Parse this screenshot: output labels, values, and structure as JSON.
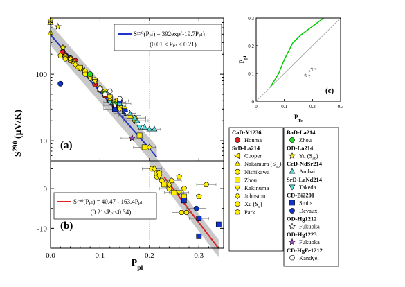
{
  "chart_data": [
    {
      "panel": "(a)",
      "type": "scatter",
      "scale": "log",
      "xlim": [
        0,
        0.35
      ],
      "ylim": [
        5,
        700
      ],
      "xticks": [
        "0.0",
        "0.1",
        "0.2",
        "0.3"
      ],
      "yticks": [
        {
          "v": 10,
          "label": "10"
        },
        {
          "v": 100,
          "label": "100"
        }
      ],
      "ylabel": "S",
      "ylabel_sup": "290",
      "ylabel_rest": " (μV/K)",
      "grid_x": [
        0.1,
        0.2
      ],
      "fit": {
        "label": "S²⁹⁰(Pₚₗ) = 392exp(-19.7Pₚₗ)",
        "range": "(0.01 < Pₚₗ < 0.21)",
        "a": 392,
        "b": -19.7,
        "color": "#2233cc",
        "x_range": [
          0.0,
          0.215
        ]
      },
      "points": [
        {
          "s": "CaD-Y1236 Honma",
          "x": 0.024,
          "y": 215
        },
        {
          "s": "CaD-Y1236 Honma",
          "x": 0.03,
          "y": 190
        },
        {
          "s": "CaD-Y1236 Honma",
          "x": 0.04,
          "y": 175
        },
        {
          "s": "CaD-Y1236 Honma",
          "x": 0.05,
          "y": 160
        },
        {
          "s": "CaD-Y1236 Honma",
          "x": 0.06,
          "y": 125
        },
        {
          "s": "CaD-Y1236 Honma",
          "x": 0.07,
          "y": 105
        },
        {
          "s": "CaD-Y1236 Honma",
          "x": 0.08,
          "y": 92
        },
        {
          "s": "CaD-Y1236 Honma",
          "x": 0.09,
          "y": 70
        },
        {
          "s": "CaD-Y1236 Honma",
          "x": 0.1,
          "y": 58
        },
        {
          "s": "CaD-Y1236 Honma",
          "x": 0.11,
          "y": 48
        },
        {
          "s": "CaD-Y1236 Honma",
          "x": 0.12,
          "y": 40
        },
        {
          "s": "CaD-Y1236 Honma",
          "x": 0.13,
          "y": 33
        },
        {
          "s": "SrD-La214 Cooper",
          "x": 0.045,
          "y": 150
        },
        {
          "s": "SrD-La214 Cooper",
          "x": 0.065,
          "y": 115
        },
        {
          "s": "SrD-La214 Cooper",
          "x": 0.09,
          "y": 80
        },
        {
          "s": "SrD-La214 Cooper",
          "x": 0.12,
          "y": 42
        },
        {
          "s": "SrD-La214 Nakamura",
          "x": 0.0,
          "y": 600
        },
        {
          "s": "SrD-La214 Nakamura",
          "x": 0.0,
          "y": 420
        },
        {
          "s": "SrD-La214 Nakamura",
          "x": 0.055,
          "y": 130
        },
        {
          "s": "SrD-La214 Nishikawa",
          "x": 0.03,
          "y": 185
        },
        {
          "s": "SrD-La214 Nishikawa",
          "x": 0.05,
          "y": 145
        },
        {
          "s": "SrD-La214 Nishikawa",
          "x": 0.07,
          "y": 110
        },
        {
          "s": "SrD-La214 Nishikawa",
          "x": 0.09,
          "y": 82
        },
        {
          "s": "SrD-La214 Nishikawa",
          "x": 0.11,
          "y": 55
        },
        {
          "s": "SrD-La214 Nishikawa",
          "x": 0.135,
          "y": 40
        },
        {
          "s": "SrD-La214 Nishikawa",
          "x": 0.15,
          "y": 30
        },
        {
          "s": "SrD-La214 Nishikawa",
          "x": 0.17,
          "y": 22
        },
        {
          "s": "SrD-La214 Zhou",
          "x": 0.06,
          "y": 125
        },
        {
          "s": "SrD-La214 Zhou",
          "x": 0.08,
          "y": 95
        },
        {
          "s": "SrD-La214 Zhou",
          "x": 0.1,
          "y": 60
        },
        {
          "s": "SrD-La214 Zhou",
          "x": 0.12,
          "y": 45
        },
        {
          "s": "SrD-La214 Zhou",
          "x": 0.14,
          "y": 32
        },
        {
          "s": "SrD-La214 Zhou",
          "x": 0.16,
          "y": 24
        },
        {
          "s": "SrD-La214 Zhou",
          "x": 0.18,
          "y": 12
        },
        {
          "s": "SrD-La214 Zhou",
          "x": 0.19,
          "y": 8
        },
        {
          "s": "SrD-La214 Kakinuma",
          "x": 0.03,
          "y": 175
        },
        {
          "s": "SrD-La214 Kakinuma",
          "x": 0.06,
          "y": 120
        },
        {
          "s": "SrD-La214 Kakinuma",
          "x": 0.09,
          "y": 78
        },
        {
          "s": "SrD-La214 Kakinuma",
          "x": 0.12,
          "y": 44
        },
        {
          "s": "SrD-La214 Kakinuma",
          "x": 0.15,
          "y": 28
        },
        {
          "s": "SrD-La214 Johnston",
          "x": 0.05,
          "y": 140
        },
        {
          "s": "SrD-La214 Johnston",
          "x": 0.08,
          "y": 88
        },
        {
          "s": "SrD-La214 Johnston",
          "x": 0.11,
          "y": 50
        },
        {
          "s": "SrD-La214 Johnston",
          "x": 0.14,
          "y": 30
        },
        {
          "s": "SrD-La214 Johnston",
          "x": 0.17,
          "y": 20
        },
        {
          "s": "SrD-La214 Johnston",
          "x": 0.2,
          "y": 8
        },
        {
          "s": "SrD-La214 Xu",
          "x": 0.03,
          "y": 170
        },
        {
          "s": "SrD-La214 Xu",
          "x": 0.07,
          "y": 100
        },
        {
          "s": "SrD-La214 Xu",
          "x": 0.12,
          "y": 40
        },
        {
          "s": "SrD-La214 Park",
          "x": 0.02,
          "y": 190
        },
        {
          "s": "SrD-La214 Park",
          "x": 0.04,
          "y": 160
        },
        {
          "s": "SrD-La214 Park",
          "x": 0.1,
          "y": 62
        },
        {
          "s": "SrD-La214 Park",
          "x": 0.13,
          "y": 38
        },
        {
          "s": "BaD-La214 Zhou",
          "x": 0.08,
          "y": 100
        },
        {
          "s": "BaD-La214 Zhou",
          "x": 0.11,
          "y": 52
        },
        {
          "s": "BaD-La214 Zhou",
          "x": 0.13,
          "y": 36
        },
        {
          "s": "OD-La214 Yu",
          "x": 0.0,
          "y": 650
        },
        {
          "s": "OD-La214 Yu",
          "x": 0.015,
          "y": 520
        },
        {
          "s": "OD-La214 Yu",
          "x": 0.025,
          "y": 250
        },
        {
          "s": "OD-La214 Yu",
          "x": 0.04,
          "y": 170
        },
        {
          "s": "CeD-NdSr214 Ambai",
          "x": 0.14,
          "y": 36
        },
        {
          "s": "CeD-NdSr214 Ambai",
          "x": 0.16,
          "y": 26
        },
        {
          "s": "CeD-NdSr214 Ambai",
          "x": 0.175,
          "y": 20
        },
        {
          "s": "CeD-NdSr214 Ambai",
          "x": 0.19,
          "y": 16
        },
        {
          "s": "CeD-NdSr214 Ambai",
          "x": 0.2,
          "y": 15
        },
        {
          "s": "CeD-NdSr214 Ambai",
          "x": 0.21,
          "y": 15
        },
        {
          "s": "CeD-NdSr214 Ambai",
          "x": 0.17,
          "y": 22
        },
        {
          "s": "SrD-LaNd214 Takeda",
          "x": 0.12,
          "y": 38
        },
        {
          "s": "SrD-LaNd214 Takeda",
          "x": 0.15,
          "y": 26
        },
        {
          "s": "SrD-LaNd214 Takeda",
          "x": 0.18,
          "y": 16
        },
        {
          "s": "CD-Bi2201 Smits",
          "x": 0.13,
          "y": 30
        },
        {
          "s": "CD-Bi2201 Smits",
          "x": 0.15,
          "y": 28
        },
        {
          "s": "CD-Bi2201 Devaux",
          "x": 0.02,
          "y": 72
        },
        {
          "s": "CD-Bi2201 Devaux",
          "x": 0.14,
          "y": 40
        },
        {
          "s": "OD-Hg1212 Fukuoka",
          "x": 0.13,
          "y": 34
        },
        {
          "s": "OD-Hg1212 Fukuoka",
          "x": 0.155,
          "y": 26
        },
        {
          "s": "OD-Hg1223 Fukuoka",
          "x": 0.165,
          "y": 11
        },
        {
          "s": "CD-HgFe1212 Kandyel",
          "x": 0.1,
          "y": 60
        },
        {
          "s": "CD-HgFe1212 Kandyel",
          "x": 0.11,
          "y": 50
        },
        {
          "s": "CD-HgFe1212 Kandyel",
          "x": 0.14,
          "y": 43
        },
        {
          "s": "CD-HgFe1212 Kandyel",
          "x": 0.12,
          "y": 56
        }
      ]
    },
    {
      "panel": "(b)",
      "type": "scatter",
      "scale": "linear",
      "xlim": [
        0,
        0.35
      ],
      "ylim": [
        -15,
        7
      ],
      "xticks": [
        "0.0",
        "0.1",
        "0.2",
        "0.3"
      ],
      "yticks": [
        {
          "v": 0,
          "label": "0"
        },
        {
          "v": -10,
          "label": "-10"
        }
      ],
      "xlabel": "P",
      "xlabel_sub": "pl",
      "grid_x": [
        0.1,
        0.2
      ],
      "fit": {
        "label": "S²⁹⁰(Pₚₗ) = 40.47 - 163.4Pₚₗ",
        "range": "(0.21<Pₚₗ<0.34)",
        "a": 40.47,
        "b": -163.4,
        "color": "#dd2222",
        "x_range": [
          0.2,
          0.34
        ]
      },
      "points": [
        {
          "s": "SrD-La214 Nishikawa",
          "x": 0.205,
          "y": 5
        },
        {
          "s": "SrD-La214 Nishikawa",
          "x": 0.215,
          "y": 3
        },
        {
          "s": "SrD-La214 Nishikawa",
          "x": 0.225,
          "y": 2
        },
        {
          "s": "SrD-La214 Nishikawa",
          "x": 0.24,
          "y": 0
        },
        {
          "s": "SrD-La214 Zhou",
          "x": 0.215,
          "y": 4
        },
        {
          "s": "SrD-La214 Zhou",
          "x": 0.23,
          "y": 1
        },
        {
          "s": "SrD-La214 Zhou",
          "x": 0.25,
          "y": -1
        },
        {
          "s": "SrD-La214 Zhou",
          "x": 0.27,
          "y": -2
        },
        {
          "s": "SrD-La214 Kakinuma",
          "x": 0.22,
          "y": 3
        },
        {
          "s": "SrD-La214 Kakinuma",
          "x": 0.26,
          "y": -1
        },
        {
          "s": "SrD-La214 Johnston",
          "x": 0.21,
          "y": 5
        },
        {
          "s": "SrD-La214 Johnston",
          "x": 0.24,
          "y": 1
        },
        {
          "s": "SrD-La214 Xu",
          "x": 0.265,
          "y": -6
        },
        {
          "s": "SrD-La214 Xu",
          "x": 0.275,
          "y": -6
        },
        {
          "s": "SrD-La214 Park",
          "x": 0.22,
          "y": 4
        },
        {
          "s": "SrD-La214 Park",
          "x": 0.245,
          "y": 2
        },
        {
          "s": "SrD-La214 Park",
          "x": 0.27,
          "y": 0
        },
        {
          "s": "SrD-La214 Park",
          "x": 0.3,
          "y": -2
        },
        {
          "s": "SrD-La214 Park",
          "x": 0.315,
          "y": 1
        },
        {
          "s": "SrD-La214 Park",
          "x": 0.26,
          "y": 3
        },
        {
          "s": "CD-Bi2201 Smits",
          "x": 0.27,
          "y": -3
        },
        {
          "s": "CD-Bi2201 Smits",
          "x": 0.3,
          "y": -7.5
        },
        {
          "s": "CD-Bi2201 Smits",
          "x": 0.3,
          "y": -12
        },
        {
          "s": "CD-Bi2201 Smits",
          "x": 0.34,
          "y": -9
        },
        {
          "s": "CD-Bi2201 Devaux",
          "x": 0.295,
          "y": -5
        }
      ]
    },
    {
      "panel": "(c)",
      "type": "line",
      "xlim": [
        0,
        0.3
      ],
      "ylim": [
        0,
        0.3
      ],
      "xticks": [
        "0",
        "0.1",
        "0.2",
        "0.3"
      ],
      "yticks": [
        "0",
        "0.1",
        "0.2",
        "0.3"
      ],
      "xlabel": "P",
      "xlabel_sub": "Tc",
      "ylabel": "P",
      "ylabel_sub": "pl",
      "diag_label": "P",
      "diag_label_tail": " = P",
      "diag_label_sub1": "pl",
      "diag_label_sub2": "Tc",
      "series": [
        {
          "color": "#00cc00",
          "x": [
            0.05,
            0.08,
            0.1,
            0.13,
            0.16,
            0.2,
            0.24
          ],
          "y": [
            0.05,
            0.1,
            0.15,
            0.21,
            0.24,
            0.27,
            0.3
          ]
        }
      ]
    }
  ],
  "legend": [
    {
      "group": "CaD-Y1236",
      "items": [
        {
          "label": "Honma",
          "marker": "circle",
          "color": "#e02020"
        }
      ]
    },
    {
      "group": "SrD-La214",
      "items": [
        {
          "label": "Cooper",
          "marker": "tri-left",
          "color": "#ffee00"
        },
        {
          "label": "Nakamura (S",
          "label_sub": "ab",
          "label_tail": ")",
          "marker": "tri-up",
          "color": "#ffee00"
        },
        {
          "label": "Nishikawa",
          "marker": "circle",
          "color": "#ffee00"
        },
        {
          "label": "Zhou",
          "marker": "square",
          "color": "#ffee00"
        },
        {
          "label": "Kakinuma",
          "marker": "tri-down",
          "color": "#ffee00"
        },
        {
          "label": "Johnston",
          "marker": "diamond",
          "color": "#ffee00"
        },
        {
          "label": "Xu (S",
          "label_sub": "c",
          "label_tail": ")",
          "marker": "hexagon",
          "color": "#ffee00"
        },
        {
          "label": "Park",
          "marker": "pentagon",
          "color": "#ffee00"
        }
      ]
    }
  ],
  "legend2": [
    {
      "group": "BaD-La214",
      "items": [
        {
          "label": "Zhou",
          "marker": "circle",
          "color": "#22dd22"
        }
      ]
    },
    {
      "group": "OD-La214",
      "items": [
        {
          "label": "Yu (S",
          "label_sub": "ab",
          "label_tail": ")",
          "marker": "star",
          "color": "#ffee00"
        }
      ]
    },
    {
      "group": "CeD-NdSr214",
      "items": [
        {
          "label": "Ambai",
          "marker": "tri-up",
          "color": "#55dddd"
        }
      ]
    },
    {
      "group": "SrD-LaNd214",
      "items": [
        {
          "label": "Takeda",
          "marker": "tri-down",
          "color": "#55dddd"
        }
      ]
    },
    {
      "group": "CD-Bi2201",
      "items": [
        {
          "label": "Smits",
          "marker": "square",
          "color": "#1133cc"
        },
        {
          "label": "Devaux",
          "marker": "circle",
          "color": "#1133cc"
        }
      ]
    },
    {
      "group": "OD-Hg1212",
      "items": [
        {
          "label": "Fukuoka",
          "marker": "star",
          "color": "#ffffff"
        }
      ]
    },
    {
      "group": "OD-Hg1223",
      "items": [
        {
          "label": "Fukuoka",
          "marker": "star",
          "color": "#aa44cc"
        }
      ]
    },
    {
      "group": "CD-HgFe1212",
      "items": [
        {
          "label": "Kandyel",
          "marker": "hexagon",
          "color": "#ffffff"
        }
      ]
    }
  ],
  "series_style": {
    "CaD-Y1236 Honma": {
      "marker": "circle",
      "color": "#e02020"
    },
    "SrD-La214 Cooper": {
      "marker": "tri-left",
      "color": "#ffee00"
    },
    "SrD-La214 Nakamura": {
      "marker": "tri-up",
      "color": "#ffee00"
    },
    "SrD-La214 Nishikawa": {
      "marker": "circle",
      "color": "#ffee00"
    },
    "SrD-La214 Zhou": {
      "marker": "square",
      "color": "#ffee00"
    },
    "SrD-La214 Kakinuma": {
      "marker": "tri-down",
      "color": "#ffee00"
    },
    "SrD-La214 Johnston": {
      "marker": "diamond",
      "color": "#ffee00"
    },
    "SrD-La214 Xu": {
      "marker": "hexagon",
      "color": "#ffee00"
    },
    "SrD-La214 Park": {
      "marker": "pentagon",
      "color": "#ffee00"
    },
    "BaD-La214 Zhou": {
      "marker": "circle",
      "color": "#22dd22"
    },
    "OD-La214 Yu": {
      "marker": "star",
      "color": "#ffee00"
    },
    "CeD-NdSr214 Ambai": {
      "marker": "tri-up",
      "color": "#55dddd"
    },
    "SrD-LaNd214 Takeda": {
      "marker": "tri-down",
      "color": "#55dddd"
    },
    "CD-Bi2201 Smits": {
      "marker": "square",
      "color": "#1133cc"
    },
    "CD-Bi2201 Devaux": {
      "marker": "circle",
      "color": "#1133cc"
    },
    "OD-Hg1212 Fukuoka": {
      "marker": "star",
      "color": "#ffffff"
    },
    "OD-Hg1223 Fukuoka": {
      "marker": "star",
      "color": "#aa44cc"
    },
    "CD-HgFe1212 Kandyel": {
      "marker": "hexagon",
      "color": "#ffffff"
    }
  }
}
